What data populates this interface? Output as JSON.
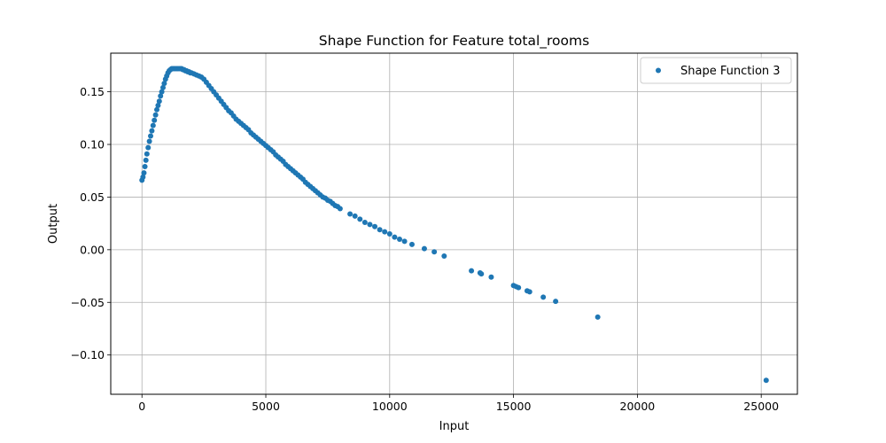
{
  "chart_data": {
    "type": "scatter",
    "title": "Shape Function for Feature total_rooms",
    "xlabel": "Input",
    "ylabel": "Output",
    "xlim": [
      -1260,
      26460
    ],
    "ylim": [
      -0.1373,
      0.1867
    ],
    "xticks": [
      0,
      5000,
      10000,
      15000,
      20000,
      25000
    ],
    "xtick_labels": [
      "0",
      "5000",
      "10000",
      "15000",
      "20000",
      "25000"
    ],
    "yticks": [
      -0.1,
      -0.05,
      0.0,
      0.05,
      0.1,
      0.15
    ],
    "ytick_labels": [
      "−0.10",
      "−0.05",
      "0.00",
      "0.05",
      "0.10",
      "0.15"
    ],
    "grid": true,
    "legend_position": "top-right",
    "marker_color": "#1f77b4",
    "series": [
      {
        "name": "Shape Function 3",
        "x": [
          0,
          40,
          80,
          120,
          160,
          200,
          250,
          300,
          350,
          400,
          450,
          500,
          550,
          600,
          650,
          700,
          750,
          800,
          850,
          900,
          950,
          1000,
          1050,
          1100,
          1150,
          1200,
          1250,
          1300,
          1350,
          1400,
          1450,
          1500,
          1550,
          1600,
          1650,
          1700,
          1750,
          1800,
          1850,
          1900,
          1950,
          2000,
          2100,
          2200,
          2300,
          2400,
          2500,
          2600,
          2700,
          2800,
          2900,
          3000,
          3100,
          3200,
          3300,
          3400,
          3500,
          3600,
          3700,
          3800,
          3900,
          4000,
          4100,
          4200,
          4300,
          4400,
          4500,
          4600,
          4700,
          4800,
          4900,
          5000,
          5100,
          5200,
          5300,
          5400,
          5500,
          5600,
          5700,
          5800,
          5900,
          6000,
          6100,
          6200,
          6300,
          6400,
          6500,
          6600,
          6700,
          6800,
          6900,
          7000,
          7100,
          7200,
          7300,
          7400,
          7500,
          7600,
          7700,
          7800,
          7900,
          8000,
          8400,
          8600,
          8800,
          9000,
          9200,
          9400,
          9600,
          9800,
          10000,
          10200,
          10400,
          10600,
          10900,
          11400,
          11800,
          12200,
          13300,
          13650,
          13700,
          14100,
          15000,
          15100,
          15200,
          15550,
          15650,
          16200,
          16700,
          18400,
          25200
        ],
        "y": [
          0.066,
          0.069,
          0.073,
          0.079,
          0.085,
          0.091,
          0.097,
          0.103,
          0.108,
          0.113,
          0.118,
          0.123,
          0.128,
          0.133,
          0.137,
          0.141,
          0.146,
          0.15,
          0.154,
          0.158,
          0.162,
          0.165,
          0.168,
          0.17,
          0.171,
          0.172,
          0.172,
          0.172,
          0.172,
          0.172,
          0.172,
          0.172,
          0.172,
          0.172,
          0.171,
          0.171,
          0.17,
          0.17,
          0.169,
          0.169,
          0.168,
          0.168,
          0.167,
          0.166,
          0.165,
          0.164,
          0.162,
          0.159,
          0.156,
          0.153,
          0.15,
          0.147,
          0.144,
          0.141,
          0.138,
          0.135,
          0.132,
          0.13,
          0.127,
          0.124,
          0.122,
          0.12,
          0.118,
          0.116,
          0.114,
          0.111,
          0.109,
          0.107,
          0.105,
          0.103,
          0.101,
          0.099,
          0.097,
          0.095,
          0.093,
          0.09,
          0.088,
          0.086,
          0.084,
          0.081,
          0.079,
          0.077,
          0.075,
          0.073,
          0.071,
          0.069,
          0.067,
          0.064,
          0.062,
          0.06,
          0.058,
          0.056,
          0.054,
          0.052,
          0.05,
          0.049,
          0.047,
          0.046,
          0.044,
          0.042,
          0.041,
          0.039,
          0.034,
          0.032,
          0.029,
          0.026,
          0.024,
          0.022,
          0.019,
          0.017,
          0.015,
          0.012,
          0.01,
          0.008,
          0.005,
          0.001,
          -0.002,
          -0.006,
          -0.02,
          -0.022,
          -0.023,
          -0.026,
          -0.034,
          -0.035,
          -0.036,
          -0.039,
          -0.04,
          -0.045,
          -0.049,
          -0.064,
          -0.124
        ]
      }
    ]
  }
}
